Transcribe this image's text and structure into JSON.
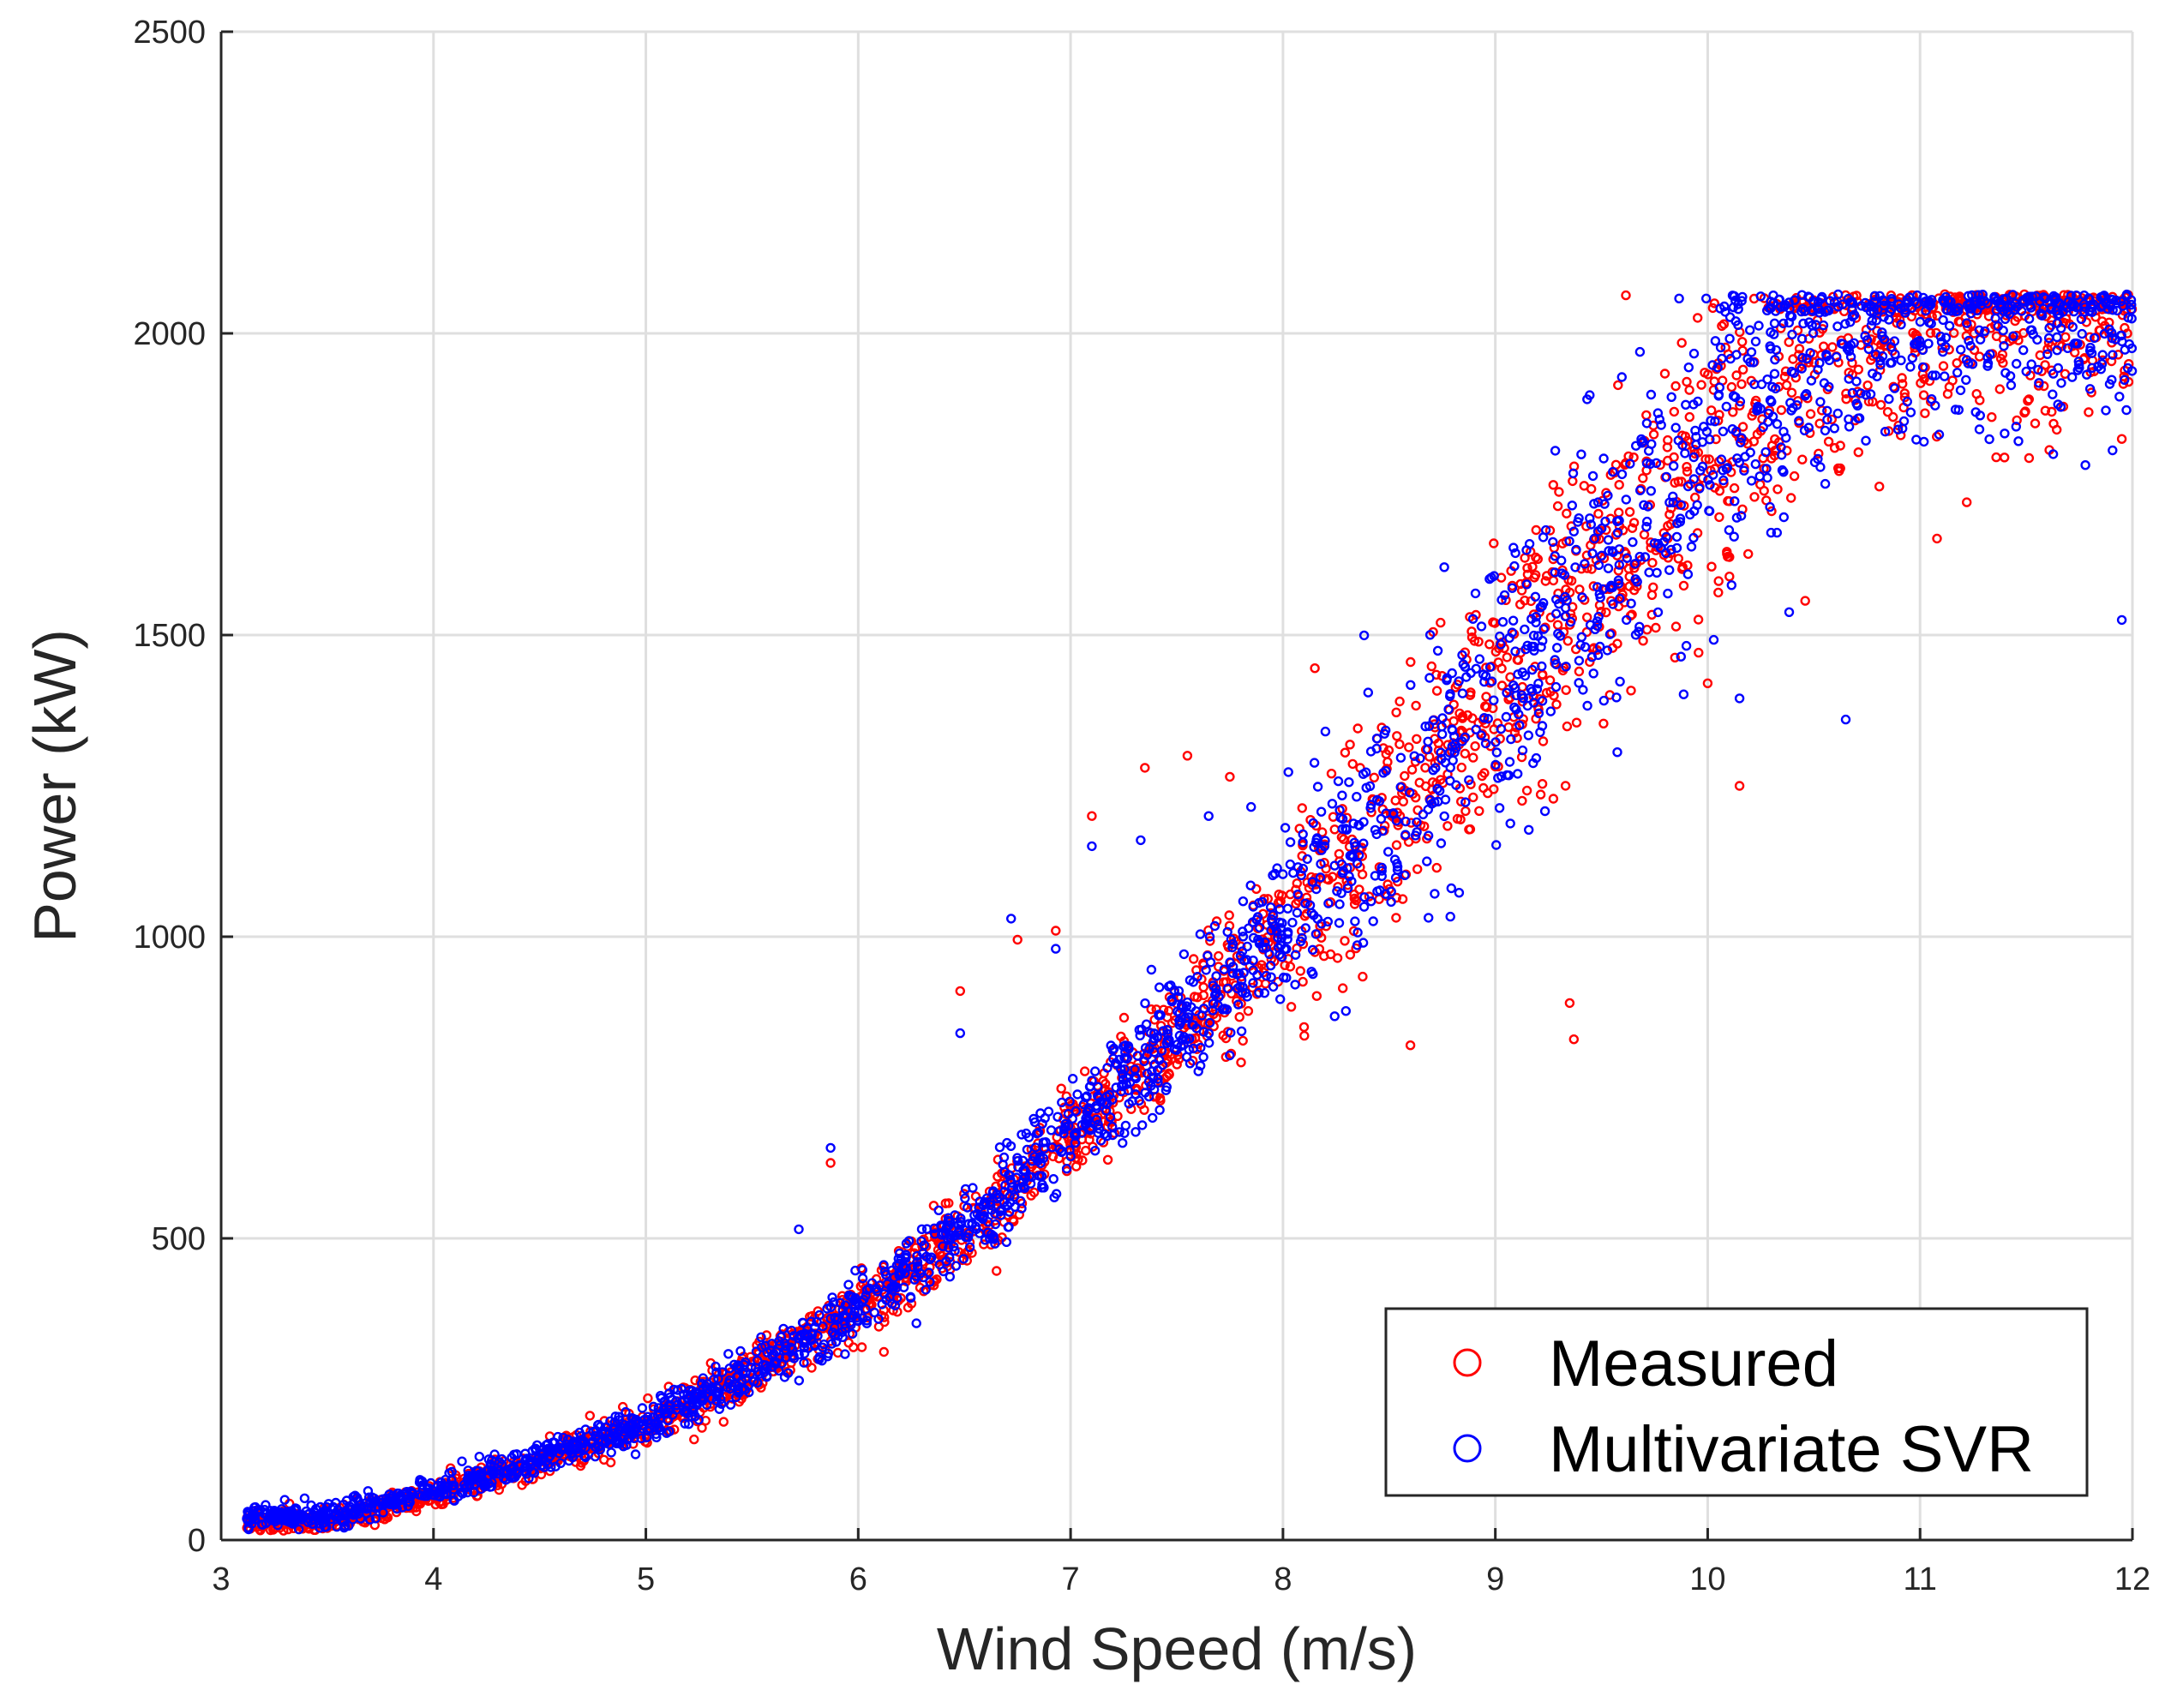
{
  "chart_data": {
    "type": "scatter",
    "title": "",
    "xlabel": "Wind Speed (m/s)",
    "ylabel": "Power (kW)",
    "xlim": [
      3,
      12
    ],
    "ylim": [
      0,
      2500
    ],
    "xticks": [
      3,
      4,
      5,
      6,
      7,
      8,
      9,
      10,
      11,
      12
    ],
    "yticks": [
      0,
      500,
      1000,
      1500,
      2000,
      2500
    ],
    "grid": true,
    "legend_position": "bottom-right",
    "colors": {
      "measured": "#ff0000",
      "svr": "#0000ff"
    },
    "series": [
      {
        "name": "Measured",
        "color": "#ff0000",
        "marker": "open-circle",
        "curve": [
          [
            3.1,
            30
          ],
          [
            3.5,
            30
          ],
          [
            4,
            75
          ],
          [
            4.5,
            130
          ],
          [
            5,
            190
          ],
          [
            5.5,
            275
          ],
          [
            6,
            380
          ],
          [
            6.5,
            510
          ],
          [
            7,
            670
          ],
          [
            7.5,
            840
          ],
          [
            8,
            1010
          ],
          [
            8.5,
            1200
          ],
          [
            9,
            1400
          ],
          [
            9.5,
            1620
          ],
          [
            10,
            1820
          ],
          [
            10.5,
            1960
          ],
          [
            11,
            2030
          ],
          [
            11.5,
            2050
          ],
          [
            12,
            2050
          ]
        ],
        "outliers": [
          [
            5.87,
            625
          ],
          [
            6.48,
            910
          ],
          [
            6.75,
            995
          ],
          [
            6.93,
            1010
          ],
          [
            7.1,
            1200
          ],
          [
            7.35,
            1280
          ],
          [
            7.55,
            1300
          ],
          [
            7.75,
            1265
          ],
          [
            8.15,
            1445
          ],
          [
            8.6,
            820
          ],
          [
            9.35,
            890
          ],
          [
            9.37,
            830
          ],
          [
            10.15,
            1250
          ],
          [
            10.0,
            1420
          ],
          [
            11.95,
            1825
          ],
          [
            11.62,
            1870
          ],
          [
            11.08,
            1660
          ],
          [
            11.22,
            1720
          ]
        ]
      },
      {
        "name": "Multivariate SVR",
        "color": "#0000ff",
        "marker": "open-circle",
        "curve": [
          [
            3.1,
            40
          ],
          [
            3.5,
            40
          ],
          [
            4,
            80
          ],
          [
            4.5,
            135
          ],
          [
            5,
            195
          ],
          [
            5.5,
            280
          ],
          [
            6,
            385
          ],
          [
            6.5,
            515
          ],
          [
            7,
            675
          ],
          [
            7.5,
            845
          ],
          [
            8,
            1015
          ],
          [
            8.5,
            1205
          ],
          [
            9,
            1405
          ],
          [
            9.5,
            1625
          ],
          [
            10,
            1825
          ],
          [
            10.5,
            1965
          ],
          [
            11,
            2035
          ],
          [
            11.5,
            2055
          ],
          [
            12,
            2055
          ]
        ],
        "outliers": [
          [
            5.87,
            650
          ],
          [
            5.72,
            515
          ],
          [
            6.48,
            840
          ],
          [
            6.72,
            1030
          ],
          [
            6.93,
            980
          ],
          [
            7.1,
            1150
          ],
          [
            7.33,
            1160
          ],
          [
            7.65,
            1200
          ],
          [
            7.85,
            1215
          ],
          [
            8.2,
            1340
          ],
          [
            10.15,
            1395
          ],
          [
            10.65,
            1360
          ],
          [
            11.95,
            1525
          ]
        ]
      }
    ]
  }
}
